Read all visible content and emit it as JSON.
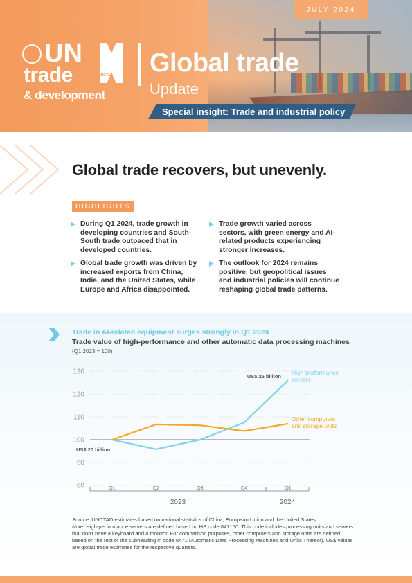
{
  "header": {
    "date": "JULY 2024",
    "logo": {
      "line1": "UN",
      "line2": "trade",
      "line3": "& development",
      "mark_label": "UNCTAD"
    },
    "title": "Global trade",
    "subtitle": "Update",
    "insight": "Special insight: Trade and industrial policy",
    "colors": {
      "accent": "#f49a5b",
      "navy": "#2f5d86",
      "cyan": "#6fcbe8"
    }
  },
  "headline": "Global trade recovers, but unevenly.",
  "highlights": {
    "label": "HIGHLIGHTS",
    "items": [
      "During Q1 2024, trade growth in developing countries and South-South trade outpaced that in developed countries.",
      "Global trade growth was driven by increased exports from China, India, and the United States, while Europe and Africa disappointed.",
      "Trade growth varied across sectors, with green energy and AI-related products experiencing stronger increases.",
      "The outlook for 2024 remains positive, but geopolitical issues and industrial policies will continue reshaping global trade patterns."
    ]
  },
  "chart": {
    "title": "Trade in AI-related equipment surges strongly in Q1 2024",
    "subtitle": "Trade value of high-performance and other automatic data processing machines",
    "note": "(Q1 2023 = 100)"
  },
  "chart_data": {
    "type": "line",
    "categories": [
      "Q1",
      "Q2",
      "Q3",
      "Q4",
      "Q1"
    ],
    "year_labels": [
      "2023",
      "2024"
    ],
    "ylim": [
      80,
      130
    ],
    "yticks": [
      80,
      90,
      100,
      110,
      120,
      130
    ],
    "series": [
      {
        "name": "High-performance servers",
        "color": "#7fd3ee",
        "values": [
          100,
          95.8,
          100,
          107.5,
          126
        ]
      },
      {
        "name": "Other computers and storage units",
        "color": "#f5a623",
        "values": [
          100,
          106.7,
          106.3,
          103.8,
          107
        ]
      }
    ],
    "annotations": [
      "US$ 25 billion",
      "US$ 20 billion"
    ],
    "grid": true
  },
  "source": {
    "source_label": "Source:",
    "source_text": " UNCTAD estimates based on national statistics of China, European Union and the United States.",
    "note_label": "Note:",
    "note_text": " High-performance servers are defined based on HS code 847150. This code includes processing units and servers that don't have a keyboard and a monitor. For comparison purposes, other computers and storage units are defined based on the rest of the subheading in code 8471 (Automatic Data Processing Machines and Units Thereof). US$ values are global trade estimates for the respective quarters."
  }
}
